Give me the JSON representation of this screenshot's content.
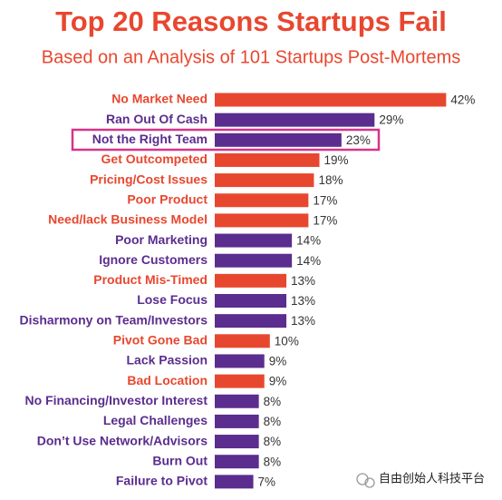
{
  "chart_data": {
    "type": "barh",
    "title": "Top 20 Reasons Startups Fail",
    "subtitle": "Based on an Analysis of 101 Startups Post-Mortems",
    "categories": [
      "No Market Need",
      "Ran Out Of Cash",
      "Not the Right Team",
      "Get Outcompeted",
      "Pricing/Cost Issues",
      "Poor Product",
      "Need/lack Business Model",
      "Poor Marketing",
      "Ignore Customers",
      "Product Mis-Timed",
      "Lose Focus",
      "Disharmony on Team/Investors",
      "Pivot Gone Bad",
      "Lack Passion",
      "Bad Location",
      "No Financing/Investor Interest",
      "Legal Challenges",
      "Don’t Use Network/Advisors",
      "Burn Out",
      "Failure to Pivot"
    ],
    "values": [
      42,
      29,
      23,
      19,
      18,
      17,
      17,
      14,
      14,
      13,
      13,
      13,
      10,
      9,
      9,
      8,
      8,
      8,
      8,
      7
    ],
    "value_labels": [
      "42%",
      "29%",
      "23%",
      "19%",
      "18%",
      "17%",
      "17%",
      "14%",
      "14%",
      "13%",
      "13%",
      "13%",
      "10%",
      "9%",
      "9%",
      "8%",
      "8%",
      "8%",
      "8%",
      "7%"
    ],
    "colors": [
      "#e8472f",
      "#5b2d8e",
      "#5b2d8e",
      "#e8472f",
      "#e8472f",
      "#e8472f",
      "#e8472f",
      "#5b2d8e",
      "#5b2d8e",
      "#e8472f",
      "#5b2d8e",
      "#5b2d8e",
      "#e8472f",
      "#5b2d8e",
      "#e8472f",
      "#5b2d8e",
      "#5b2d8e",
      "#5b2d8e",
      "#5b2d8e",
      "#5b2d8e"
    ]
  },
  "watermark": "自由创始人科技平台"
}
